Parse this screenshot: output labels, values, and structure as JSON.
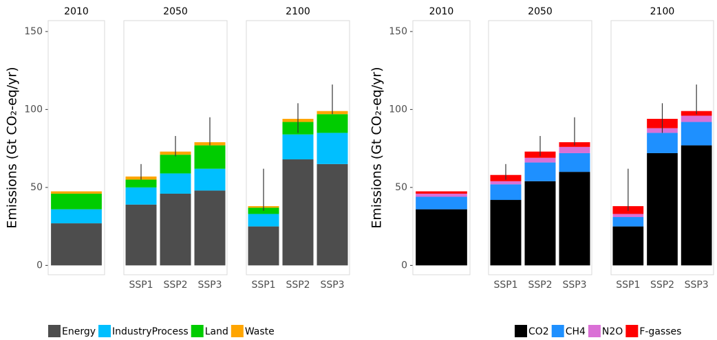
{
  "chart_data": [
    {
      "type": "bar",
      "stacked": true,
      "ylabel": "Emissions (Gt CO₂-eq/yr)",
      "ylim": [
        -6,
        157
      ],
      "yticks": [
        0,
        50,
        100,
        150
      ],
      "series": [
        {
          "name": "Energy",
          "color": "#4d4d4d"
        },
        {
          "name": "IndustryProcess",
          "color": "#00bfff"
        },
        {
          "name": "Land",
          "color": "#00cc00"
        },
        {
          "name": "Waste",
          "color": "#ffa500"
        }
      ],
      "facets": [
        {
          "title": "2010",
          "categories": [
            null
          ],
          "values": [
            [
              27
            ],
            [
              9
            ],
            [
              10
            ],
            [
              1.5
            ]
          ],
          "error_low": [
            null
          ],
          "error_high": [
            null
          ]
        },
        {
          "title": "2050",
          "categories": [
            "SSP1",
            "SSP2",
            "SSP3"
          ],
          "values": [
            [
              39,
              46,
              48
            ],
            [
              11,
              13,
              14
            ],
            [
              5,
              12,
              15
            ],
            [
              2,
              2,
              2
            ]
          ],
          "error_low": [
            55,
            70,
            77
          ],
          "error_high": [
            65,
            83,
            95
          ]
        },
        {
          "title": "2100",
          "categories": [
            "SSP1",
            "SSP2",
            "SSP3"
          ],
          "values": [
            [
              25,
              68,
              65
            ],
            [
              8,
              16,
              20
            ],
            [
              4,
              8,
              12
            ],
            [
              1,
              2,
              2
            ]
          ],
          "error_low": [
            35,
            85,
            97
          ],
          "error_high": [
            62,
            104,
            116
          ]
        }
      ]
    },
    {
      "type": "bar",
      "stacked": true,
      "ylabel": "Emissions (Gt CO₂-eq/yr)",
      "ylim": [
        -6,
        157
      ],
      "yticks": [
        0,
        50,
        100,
        150
      ],
      "series": [
        {
          "name": "CO2",
          "color": "#000000"
        },
        {
          "name": "CH4",
          "color": "#1e90ff"
        },
        {
          "name": "N2O",
          "color": "#da70d6"
        },
        {
          "name": "F-gasses",
          "color": "#ff0000"
        }
      ],
      "facets": [
        {
          "title": "2010",
          "categories": [
            null
          ],
          "values": [
            [
              36
            ],
            [
              8
            ],
            [
              2
            ],
            [
              1.5
            ]
          ],
          "error_low": [
            null
          ],
          "error_high": [
            null
          ]
        },
        {
          "title": "2050",
          "categories": [
            "SSP1",
            "SSP2",
            "SSP3"
          ],
          "values": [
            [
              42,
              54,
              60
            ],
            [
              10,
              12,
              12
            ],
            [
              2,
              3,
              4
            ],
            [
              4,
              4,
              3
            ]
          ],
          "error_low": [
            55,
            70,
            77
          ],
          "error_high": [
            65,
            83,
            95
          ]
        },
        {
          "title": "2100",
          "categories": [
            "SSP1",
            "SSP2",
            "SSP3"
          ],
          "values": [
            [
              25,
              72,
              77
            ],
            [
              6,
              13,
              15
            ],
            [
              2,
              3,
              4
            ],
            [
              5,
              6,
              3
            ]
          ],
          "error_low": [
            35,
            85,
            97
          ],
          "error_high": [
            62,
            104,
            116
          ]
        }
      ]
    }
  ]
}
